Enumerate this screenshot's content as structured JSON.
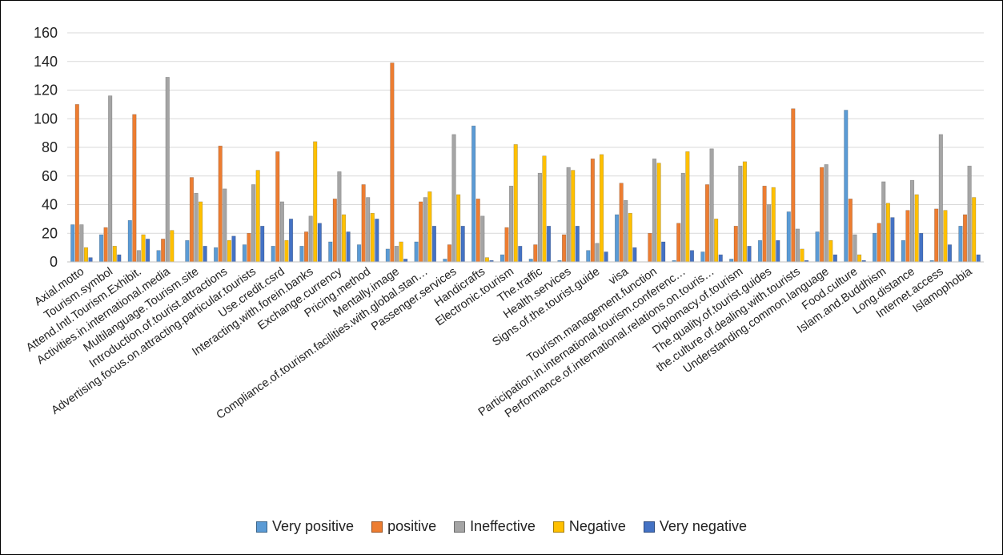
{
  "chart_data": {
    "type": "bar",
    "title": "",
    "xlabel": "",
    "ylabel": "",
    "ylim": [
      0,
      160
    ],
    "yticks": [
      0,
      20,
      40,
      60,
      80,
      100,
      120,
      140,
      160
    ],
    "grid": true,
    "legend_position": "bottom",
    "categories": [
      "Axial.motto",
      "Tourism.symbol",
      "Attend.Intl.Tourism.Exhibit.",
      "Activities.in.international.media",
      "Multilanguage.Tourism.site",
      "Introduction.of.tourist.attractions",
      "Advertising.focus.on.attracting.particular.tourists",
      "Use.credit.csrd",
      "Interacting.with.forein.banks",
      "Exchange.currency",
      "Pricing.method",
      "Mentally.image",
      "Compliance.of.tourism.facilities.with.global.stan…",
      "Passenger.services",
      "Handicrafts",
      "Electronic.tourism",
      "The.traffic",
      "Health.services",
      "Signs.of.the.tourist.guide",
      "visa",
      "Tourism.management.function",
      "Participation.in.international.tourism.conferenc…",
      "Performance.of.international.relations.on.touris…",
      "Diplomacy.of.tourism",
      "The.quality.of.tourist.guides",
      "the.culture.of.dealing.with.tourists",
      "Understanding.common.language",
      "Food.culture",
      "Islam.and.Buddhism",
      "Long.distance",
      "Internet.access",
      "Islamophobia"
    ],
    "series": [
      {
        "name": "Very positive",
        "color": "#5b9bd5",
        "values": [
          26,
          19,
          29,
          8,
          15,
          10,
          12,
          11,
          11,
          14,
          12,
          9,
          14,
          2,
          95,
          5,
          2,
          1,
          8,
          33,
          0,
          1,
          7,
          2,
          15,
          35,
          21,
          106,
          20,
          15,
          1,
          25
        ]
      },
      {
        "name": "positive",
        "color": "#ed7d31",
        "values": [
          110,
          24,
          103,
          16,
          59,
          81,
          20,
          77,
          21,
          44,
          54,
          139,
          42,
          12,
          44,
          24,
          12,
          19,
          72,
          55,
          20,
          27,
          54,
          25,
          53,
          107,
          66,
          44,
          27,
          36,
          37,
          33
        ]
      },
      {
        "name": "Ineffective",
        "color": "#a5a5a5",
        "values": [
          26,
          116,
          8,
          129,
          48,
          51,
          54,
          42,
          32,
          63,
          45,
          11,
          45,
          89,
          32,
          53,
          62,
          66,
          13,
          43,
          72,
          62,
          79,
          67,
          40,
          23,
          68,
          19,
          56,
          57,
          89,
          67
        ]
      },
      {
        "name": "Negative",
        "color": "#ffc000",
        "values": [
          10,
          11,
          19,
          22,
          42,
          15,
          64,
          15,
          84,
          33,
          34,
          14,
          49,
          47,
          3,
          82,
          74,
          64,
          75,
          34,
          69,
          77,
          30,
          70,
          52,
          9,
          15,
          5,
          41,
          47,
          36,
          45
        ]
      },
      {
        "name": "Very negative",
        "color": "#4472c4",
        "values": [
          3,
          5,
          16,
          0,
          11,
          18,
          25,
          30,
          27,
          21,
          30,
          2,
          25,
          25,
          1,
          11,
          25,
          25,
          7,
          10,
          14,
          8,
          5,
          11,
          15,
          1,
          5,
          1,
          31,
          20,
          12,
          5
        ]
      }
    ]
  }
}
